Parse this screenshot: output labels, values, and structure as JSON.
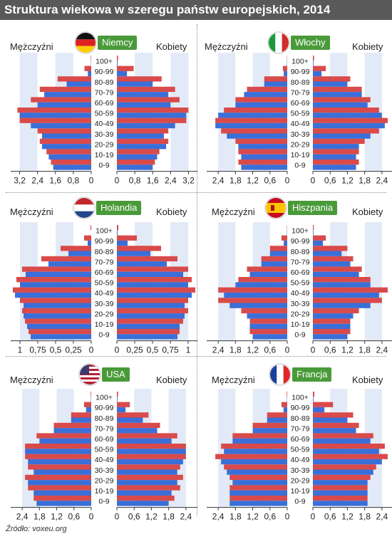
{
  "title": "Struktura wiekowa w szeregu państw europejskich, 2014",
  "source": "Źródło: voxeu.org",
  "labels": {
    "men": "Mężczyźni",
    "women": "Kobiety"
  },
  "colors": {
    "blue": "#3a6fd8",
    "red": "#d94a4a",
    "band": "#e3eaf7",
    "tag": "#4a9a3a"
  },
  "chart_data": [
    {
      "type": "bar",
      "country": "Niemcy",
      "categories": [
        "0-9",
        "10-19",
        "20-29",
        "30-39",
        "40-49",
        "50-59",
        "60-69",
        "70-79",
        "80-89",
        "90-99",
        "100+"
      ],
      "ticks": [
        "3,2",
        "2,4",
        "1,6",
        "0,8",
        "0",
        "0",
        "0,8",
        "1,6",
        "2,4",
        "3,2"
      ],
      "xlim": 3.6,
      "men_blue": [
        1.7,
        1.9,
        2.2,
        2.2,
        2.7,
        3.2,
        2.4,
        2.1,
        1.1,
        0.15,
        0.01
      ],
      "men_red": [
        1.8,
        2.0,
        2.3,
        2.4,
        3.2,
        3.3,
        2.7,
        2.3,
        1.5,
        0.3,
        0.02
      ],
      "women_blue": [
        1.6,
        1.8,
        2.2,
        2.1,
        2.6,
        3.1,
        2.4,
        2.3,
        1.6,
        0.45,
        0.03
      ],
      "women_red": [
        1.7,
        1.9,
        2.3,
        2.3,
        3.1,
        3.2,
        2.8,
        2.6,
        2.0,
        0.75,
        0.05
      ]
    },
    {
      "type": "bar",
      "country": "Włochy",
      "categories": [
        "0-9",
        "10-19",
        "20-29",
        "30-39",
        "40-49",
        "50-59",
        "60-69",
        "70-79",
        "80-89",
        "90-99",
        "100+"
      ],
      "ticks": [
        "2,4",
        "1,8",
        "1,2",
        "0,6",
        "0",
        "0",
        "0,6",
        "1,2",
        "1,8",
        "2,4"
      ],
      "xlim": 2.8,
      "men_blue": [
        1.6,
        1.6,
        1.7,
        2.1,
        2.5,
        2.4,
        1.8,
        1.5,
        0.8,
        0.12,
        0.01
      ],
      "men_red": [
        1.7,
        1.7,
        1.8,
        2.3,
        2.5,
        2.2,
        1.8,
        1.4,
        0.8,
        0.15,
        0.01
      ],
      "women_blue": [
        1.5,
        1.5,
        1.6,
        2.0,
        2.5,
        2.4,
        1.9,
        1.7,
        1.2,
        0.3,
        0.02
      ],
      "women_red": [
        1.6,
        1.6,
        1.8,
        2.3,
        2.6,
        2.3,
        2.0,
        1.7,
        1.3,
        0.45,
        0.04
      ]
    },
    {
      "type": "bar",
      "country": "Holandia",
      "categories": [
        "0-9",
        "10-19",
        "20-29",
        "30-39",
        "40-49",
        "50-59",
        "60-69",
        "70-79",
        "80-89",
        "90-99",
        "100+"
      ],
      "ticks": [
        "1",
        "0,75",
        "0,5",
        "0,25",
        "0",
        "0",
        "0,25",
        "0,5",
        "0,75",
        "1"
      ],
      "xlim": 1.13,
      "men_blue": [
        0.85,
        0.9,
        0.95,
        0.95,
        1.07,
        1.0,
        0.92,
        0.6,
        0.32,
        0.05,
        0.0
      ],
      "men_red": [
        0.88,
        0.93,
        0.97,
        1.0,
        1.1,
        1.05,
        0.97,
        0.7,
        0.43,
        0.1,
        0.01
      ],
      "women_blue": [
        0.85,
        0.88,
        0.95,
        0.95,
        1.05,
        1.0,
        0.93,
        0.7,
        0.47,
        0.15,
        0.01
      ],
      "women_red": [
        0.88,
        0.93,
        1.0,
        1.0,
        1.1,
        1.05,
        1.0,
        0.85,
        0.62,
        0.28,
        0.02
      ]
    },
    {
      "type": "bar",
      "country": "Hiszpania",
      "categories": [
        "0-9",
        "10-19",
        "20-29",
        "30-39",
        "40-49",
        "50-59",
        "60-69",
        "70-79",
        "80-89",
        "90-99",
        "100+"
      ],
      "ticks": [
        "2,4",
        "1,8",
        "1,2",
        "0,6",
        "0",
        "0",
        "0,6",
        "1,2",
        "1,8",
        "2,4"
      ],
      "xlim": 2.8,
      "men_blue": [
        1.2,
        1.3,
        1.4,
        2.0,
        2.2,
        1.8,
        1.3,
        0.9,
        0.6,
        0.12,
        0.01
      ],
      "men_red": [
        1.3,
        1.3,
        1.6,
        2.4,
        2.4,
        1.7,
        1.4,
        0.9,
        0.6,
        0.2,
        0.01
      ],
      "women_blue": [
        1.2,
        1.3,
        1.4,
        2.0,
        2.3,
        2.0,
        1.6,
        1.3,
        1.0,
        0.35,
        0.02
      ],
      "women_red": [
        1.3,
        1.3,
        1.6,
        2.4,
        2.6,
        2.0,
        1.7,
        1.4,
        1.2,
        0.45,
        0.03
      ]
    },
    {
      "type": "bar",
      "country": "USA",
      "categories": [
        "0-9",
        "10-19",
        "20-29",
        "30-39",
        "40-49",
        "50-59",
        "60-69",
        "70-79",
        "80-89",
        "90-99",
        "100+"
      ],
      "ticks": [
        "2,4",
        "1,8",
        "1,2",
        "0,6",
        "0",
        "0",
        "0,6",
        "1,2",
        "1,8",
        "2,4"
      ],
      "xlim": 2.8,
      "men_blue": [
        1.9,
        2.0,
        2.2,
        2.0,
        2.2,
        2.3,
        1.8,
        1.3,
        0.7,
        0.18,
        0.01
      ],
      "men_red": [
        2.0,
        2.2,
        2.3,
        2.2,
        2.3,
        2.3,
        1.9,
        1.3,
        0.7,
        0.25,
        0.02
      ],
      "women_blue": [
        1.8,
        1.9,
        2.1,
        2.1,
        2.3,
        2.4,
        1.9,
        1.4,
        0.9,
        0.3,
        0.02
      ],
      "women_red": [
        2.0,
        2.2,
        2.3,
        2.2,
        2.4,
        2.4,
        2.1,
        1.5,
        1.1,
        0.45,
        0.04
      ]
    },
    {
      "type": "bar",
      "country": "Francja",
      "categories": [
        "0-9",
        "10-19",
        "20-29",
        "30-39",
        "40-49",
        "50-59",
        "60-69",
        "70-79",
        "80-89",
        "90-99",
        "100+"
      ],
      "ticks": [
        "2,4",
        "1,8",
        "1,2",
        "0,6",
        "0",
        "0",
        "0,6",
        "1,2",
        "1,8",
        "2,4"
      ],
      "xlim": 2.8,
      "men_blue": [
        2.0,
        2.0,
        1.9,
        2.1,
        2.3,
        2.2,
        1.9,
        1.2,
        0.7,
        0.13,
        0.01
      ],
      "men_red": [
        2.0,
        2.0,
        2.0,
        2.2,
        2.5,
        2.3,
        1.9,
        1.2,
        0.7,
        0.2,
        0.02
      ],
      "women_blue": [
        1.9,
        1.9,
        1.9,
        2.1,
        2.4,
        2.3,
        2.0,
        1.5,
        1.2,
        0.4,
        0.02
      ],
      "women_red": [
        1.9,
        1.9,
        2.0,
        2.2,
        2.6,
        2.5,
        2.1,
        1.6,
        1.4,
        0.7,
        0.05
      ]
    }
  ]
}
